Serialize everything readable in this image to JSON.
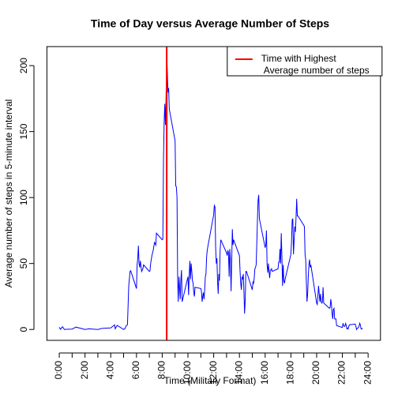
{
  "chart_data": {
    "type": "line",
    "title": "Time of Day versus Average Number of Steps",
    "x_label": "Time (Military Format)",
    "y_label": "Average number of steps in 5-minute interval",
    "xlim": [
      -96,
      2496
    ],
    "ylim": [
      -8.25,
      214.42
    ],
    "xticks": [
      {
        "value": 0,
        "label": "0:00"
      },
      {
        "value": 200,
        "label": "2:00"
      },
      {
        "value": 400,
        "label": "4:00"
      },
      {
        "value": 600,
        "label": "6:00"
      },
      {
        "value": 800,
        "label": "8:00"
      },
      {
        "value": 1000,
        "label": "10:00"
      },
      {
        "value": 1200,
        "label": "12:00"
      },
      {
        "value": 1400,
        "label": "14:00"
      },
      {
        "value": 1600,
        "label": "16:00"
      },
      {
        "value": 1800,
        "label": "18:00"
      },
      {
        "value": 2000,
        "label": "20:00"
      },
      {
        "value": 2200,
        "label": "22:00"
      },
      {
        "value": 2400,
        "label": "24:00"
      }
    ],
    "minor_xticks": [
      100,
      300,
      500,
      700,
      900,
      1100,
      1300,
      1500,
      1700,
      1900,
      2100,
      2300
    ],
    "yticks": [
      0,
      50,
      100,
      150,
      200
    ],
    "legend_position": "topright",
    "vline": {
      "x": 835,
      "color": "#ff0000",
      "label_lines": [
        "Time with Highest",
        "Average number of steps"
      ]
    },
    "series": [
      {
        "color": "#0000ff",
        "x": [
          0,
          10,
          25,
          40,
          55,
          100,
          130,
          200,
          230,
          300,
          330,
          400,
          430,
          435,
          450,
          500,
          510,
          520,
          530,
          540,
          550,
          555,
          600,
          605,
          610,
          615,
          620,
          625,
          630,
          640,
          650,
          655,
          700,
          705,
          710,
          720,
          730,
          740,
          750,
          755,
          800,
          805,
          810,
          815,
          820,
          825,
          830,
          835,
          840,
          845,
          850,
          855,
          900,
          905,
          910,
          915,
          920,
          925,
          930,
          935,
          940,
          945,
          950,
          955,
          1000,
          1005,
          1010,
          1015,
          1020,
          1025,
          1030,
          1035,
          1040,
          1045,
          1050,
          1055,
          1100,
          1105,
          1110,
          1115,
          1120,
          1125,
          1130,
          1135,
          1140,
          1145,
          1150,
          1155,
          1200,
          1205,
          1210,
          1215,
          1220,
          1225,
          1230,
          1235,
          1240,
          1245,
          1250,
          1255,
          1300,
          1305,
          1310,
          1315,
          1320,
          1325,
          1330,
          1335,
          1340,
          1345,
          1350,
          1355,
          1400,
          1405,
          1410,
          1415,
          1420,
          1425,
          1430,
          1435,
          1440,
          1445,
          1450,
          1455,
          1500,
          1505,
          1510,
          1515,
          1520,
          1525,
          1530,
          1535,
          1540,
          1545,
          1550,
          1555,
          1600,
          1605,
          1610,
          1615,
          1620,
          1625,
          1630,
          1635,
          1640,
          1645,
          1650,
          1655,
          1700,
          1705,
          1710,
          1715,
          1720,
          1725,
          1730,
          1735,
          1740,
          1745,
          1750,
          1755,
          1800,
          1805,
          1810,
          1815,
          1820,
          1825,
          1830,
          1835,
          1840,
          1845,
          1850,
          1855,
          1900,
          1905,
          1910,
          1915,
          1920,
          1925,
          1930,
          1935,
          1940,
          1945,
          1950,
          1955,
          2000,
          2005,
          2010,
          2015,
          2020,
          2025,
          2030,
          2035,
          2040,
          2045,
          2050,
          2055,
          2100,
          2105,
          2110,
          2115,
          2120,
          2125,
          2130,
          2135,
          2140,
          2145,
          2150,
          2155,
          2200,
          2205,
          2210,
          2215,
          2220,
          2225,
          2230,
          2235,
          2240,
          2245,
          2250,
          2255,
          2300,
          2305,
          2310,
          2315,
          2320,
          2325,
          2330,
          2335,
          2340,
          2345,
          2350,
          2355
        ],
        "values": [
          1.7,
          0.1,
          2.1,
          0,
          0.1,
          0.3,
          1.8,
          0,
          0.5,
          0,
          0.8,
          1.2,
          3.5,
          0.5,
          3.1,
          0,
          0.5,
          2.9,
          3.5,
          33,
          44,
          44.5,
          31,
          49,
          53.8,
          63.5,
          50,
          47,
          52,
          44,
          46,
          49,
          44,
          44.5,
          50,
          56,
          60,
          66,
          64,
          73,
          68,
          68.5,
          129,
          157,
          171,
          155,
          177,
          206,
          196,
          179.6,
          183,
          167,
          143,
          109,
          108,
          100,
          38,
          21,
          40,
          32,
          23,
          38,
          45,
          21,
          40,
          26,
          42,
          52,
          38,
          50,
          44,
          37,
          35,
          28,
          25,
          32,
          31,
          29,
          21,
          25,
          28,
          23,
          30,
          40,
          42,
          55,
          60,
          63,
          87,
          94,
          93,
          63,
          50,
          54,
          37,
          27,
          42,
          37,
          60,
          68,
          58,
          56,
          60,
          58,
          40,
          61,
          53,
          29,
          52,
          76,
          64,
          68,
          56,
          44,
          35,
          30,
          40,
          38,
          42,
          29,
          12,
          22,
          44,
          44,
          30,
          36,
          35,
          39,
          46,
          47,
          49,
          65,
          83,
          98,
          102,
          84,
          62,
          64,
          75,
          49,
          43,
          50,
          44,
          39,
          45,
          45,
          46,
          44,
          46,
          51,
          51,
          61,
          50,
          73,
          56,
          33,
          49,
          37,
          35,
          38,
          57,
          67,
          83,
          84,
          57,
          67,
          78,
          74,
          85,
          99,
          86,
          86,
          79,
          78,
          57,
          53,
          36,
          21,
          27,
          40,
          49,
          53,
          47,
          49,
          20,
          19,
          26,
          33,
          27,
          21,
          27,
          21,
          20,
          21,
          32,
          20,
          16,
          17,
          23,
          19,
          12,
          8,
          15,
          16,
          8,
          8,
          8,
          3,
          1.5,
          4.7,
          3,
          2.2,
          2.6,
          4.6,
          3.3,
          0.5,
          1.1,
          0.4,
          2.5,
          3.5,
          4.1,
          2.4,
          0,
          0.8,
          1.0,
          1.6,
          2.6,
          4.7,
          3.3,
          0.6,
          0.2,
          1.1
        ]
      }
    ]
  }
}
